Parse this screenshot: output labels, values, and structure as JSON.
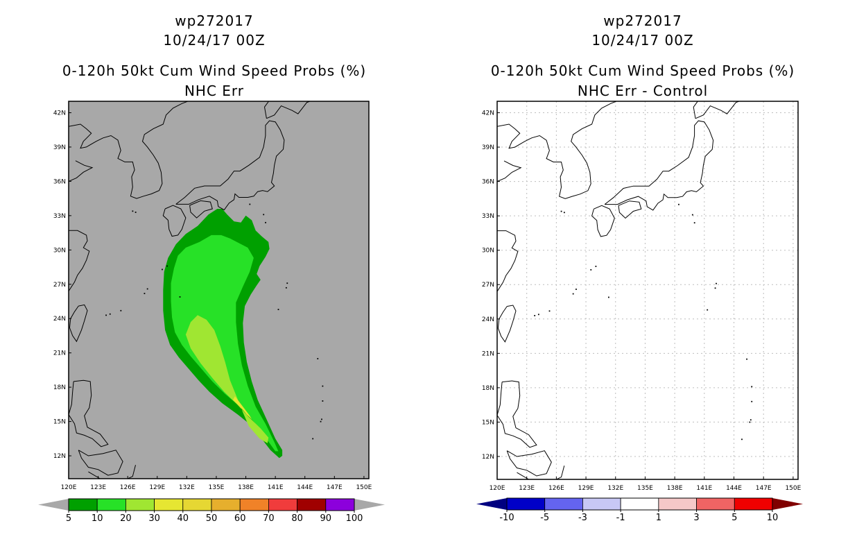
{
  "panels": [
    {
      "id": "left",
      "title_line1": "wp272017",
      "title_line2": "10/24/17 00Z",
      "title_line3": "0-120h 50kt Cum Wind Speed Probs (%)",
      "title_line4": "NHC Err"
    },
    {
      "id": "right",
      "title_line1": "wp272017",
      "title_line2": "10/24/17 00Z",
      "title_line3": "0-120h 50kt Cum Wind Speed Probs (%)",
      "title_line4": "NHC Err - Control"
    }
  ],
  "colors": {
    "map_background_left": "#a8a8a8",
    "map_background_right": "#ffffff",
    "grid": "#bdbdbd"
  },
  "chart_data": [
    {
      "type": "heatmap",
      "title": "0-120h 50kt Cum Wind Speed Probs (%) NHC Err",
      "x_ticks": [
        "120E",
        "123E",
        "126E",
        "129E",
        "132E",
        "135E",
        "138E",
        "141E",
        "144E",
        "147E",
        "150E"
      ],
      "y_ticks": [
        "12N",
        "15N",
        "18N",
        "21N",
        "24N",
        "27N",
        "30N",
        "33N",
        "36N",
        "39N",
        "42N"
      ],
      "xlim": [
        120,
        150.5
      ],
      "ylim": [
        10,
        43
      ],
      "colorbar": {
        "levels": [
          "5",
          "10",
          "20",
          "30",
          "40",
          "50",
          "60",
          "70",
          "80",
          "90",
          "100"
        ],
        "colors": [
          "#00a000",
          "#27e127",
          "#a0e632",
          "#e6e632",
          "#e6d733",
          "#e6af2d",
          "#f08228",
          "#f03c3c",
          "#a00000",
          "#8c00dc"
        ],
        "extend_colors": [
          "#a8a8a8",
          "#a8a8a8"
        ]
      },
      "contours": [
        {
          "level": "5-10",
          "color": "#00a000",
          "points": [
            [
              135.1,
              33.6
            ],
            [
              134.2,
              33.1
            ],
            [
              133.1,
              32.1
            ],
            [
              131.9,
              31.4
            ],
            [
              130.9,
              30.5
            ],
            [
              130.1,
              29.3
            ],
            [
              129.7,
              28.1
            ],
            [
              129.6,
              26.5
            ],
            [
              129.6,
              24.7
            ],
            [
              129.8,
              23.0
            ],
            [
              130.3,
              21.7
            ],
            [
              131.2,
              20.6
            ],
            [
              132.2,
              19.6
            ],
            [
              133.2,
              18.6
            ],
            [
              134.3,
              17.6
            ],
            [
              135.6,
              16.6
            ],
            [
              137.2,
              15.6
            ],
            [
              138.5,
              14.7
            ],
            [
              139.6,
              13.5
            ],
            [
              140.5,
              12.5
            ],
            [
              141.4,
              11.8
            ],
            [
              141.7,
              12.0
            ],
            [
              141.7,
              12.5
            ],
            [
              141.0,
              13.5
            ],
            [
              140.1,
              15.2
            ],
            [
              139.2,
              16.9
            ],
            [
              138.6,
              18.5
            ],
            [
              138.1,
              20.2
            ],
            [
              137.8,
              21.9
            ],
            [
              137.7,
              23.6
            ],
            [
              137.9,
              25.1
            ],
            [
              138.5,
              26.1
            ],
            [
              139.1,
              26.9
            ],
            [
              139.5,
              27.4
            ],
            [
              139.1,
              27.9
            ],
            [
              139.4,
              28.6
            ],
            [
              140.0,
              29.4
            ],
            [
              140.4,
              30.1
            ],
            [
              140.3,
              30.7
            ],
            [
              139.6,
              31.2
            ],
            [
              139.0,
              31.7
            ],
            [
              138.6,
              32.6
            ],
            [
              138.0,
              33.0
            ],
            [
              137.5,
              32.4
            ],
            [
              136.8,
              32.5
            ],
            [
              136.1,
              33.1
            ],
            [
              135.6,
              33.6
            ]
          ]
        },
        {
          "level": "10-20",
          "color": "#27e127",
          "points": [
            [
              134.5,
              31.3
            ],
            [
              133.3,
              30.7
            ],
            [
              131.9,
              30.2
            ],
            [
              131.1,
              29.5
            ],
            [
              130.7,
              28.4
            ],
            [
              130.4,
              27.1
            ],
            [
              130.4,
              25.5
            ],
            [
              130.5,
              24.1
            ],
            [
              130.8,
              22.8
            ],
            [
              131.5,
              21.7
            ],
            [
              132.4,
              20.7
            ],
            [
              133.5,
              19.6
            ],
            [
              134.6,
              18.5
            ],
            [
              135.9,
              17.4
            ],
            [
              137.4,
              16.3
            ],
            [
              138.9,
              14.9
            ],
            [
              140.0,
              13.6
            ],
            [
              141.0,
              12.4
            ],
            [
              141.3,
              12.4
            ],
            [
              140.9,
              13.2
            ],
            [
              140.0,
              14.8
            ],
            [
              139.0,
              16.3
            ],
            [
              138.2,
              18.1
            ],
            [
              137.6,
              19.9
            ],
            [
              137.2,
              21.8
            ],
            [
              137.0,
              23.7
            ],
            [
              137.0,
              25.4
            ],
            [
              137.7,
              26.8
            ],
            [
              138.4,
              28.1
            ],
            [
              138.8,
              29.3
            ],
            [
              138.2,
              30.2
            ],
            [
              137.3,
              30.6
            ],
            [
              136.4,
              31.0
            ],
            [
              135.5,
              31.3
            ]
          ]
        },
        {
          "level": "20-30",
          "color": "#a0e632",
          "points": [
            [
              133.1,
              24.3
            ],
            [
              132.4,
              23.7
            ],
            [
              131.9,
              22.6
            ],
            [
              132.4,
              21.4
            ],
            [
              133.4,
              20.1
            ],
            [
              134.6,
              18.8
            ],
            [
              135.8,
              17.6
            ],
            [
              137.1,
              16.5
            ],
            [
              138.3,
              15.4
            ],
            [
              139.5,
              14.4
            ],
            [
              140.3,
              13.6
            ],
            [
              140.2,
              13.1
            ],
            [
              139.4,
              13.5
            ],
            [
              138.3,
              14.6
            ],
            [
              137.7,
              15.8
            ],
            [
              137.1,
              17.1
            ],
            [
              136.4,
              18.6
            ],
            [
              135.9,
              20.2
            ],
            [
              135.4,
              21.6
            ],
            [
              134.8,
              23.0
            ],
            [
              134.0,
              23.9
            ]
          ]
        },
        {
          "level": "30-40",
          "color": "#e6e632",
          "points": [
            [
              136.9,
              17.2
            ],
            [
              136.7,
              16.9
            ],
            [
              137.5,
              16.2
            ],
            [
              138.1,
              15.6
            ],
            [
              138.6,
              15.2
            ],
            [
              138.4,
              15.5
            ],
            [
              137.7,
              16.3
            ]
          ]
        }
      ]
    },
    {
      "type": "heatmap",
      "title": "0-120h 50kt Cum Wind Speed Probs (%) NHC Err - Control",
      "x_ticks": [
        "120E",
        "123E",
        "126E",
        "129E",
        "132E",
        "135E",
        "138E",
        "141E",
        "144E",
        "147E",
        "150E"
      ],
      "y_ticks": [
        "12N",
        "15N",
        "18N",
        "21N",
        "24N",
        "27N",
        "30N",
        "33N",
        "36N",
        "39N",
        "42N"
      ],
      "xlim": [
        120,
        150.5
      ],
      "ylim": [
        10,
        43
      ],
      "colorbar": {
        "levels": [
          "-10",
          "-5",
          "-3",
          "-1",
          "1",
          "3",
          "5",
          "10"
        ],
        "colors": [
          "#0000c8",
          "#6464f0",
          "#c8c8f5",
          "#ffffff",
          "#f5c8c8",
          "#f06464",
          "#f00000"
        ],
        "extend_colors": [
          "#000080",
          "#800000"
        ]
      },
      "contours": []
    }
  ]
}
